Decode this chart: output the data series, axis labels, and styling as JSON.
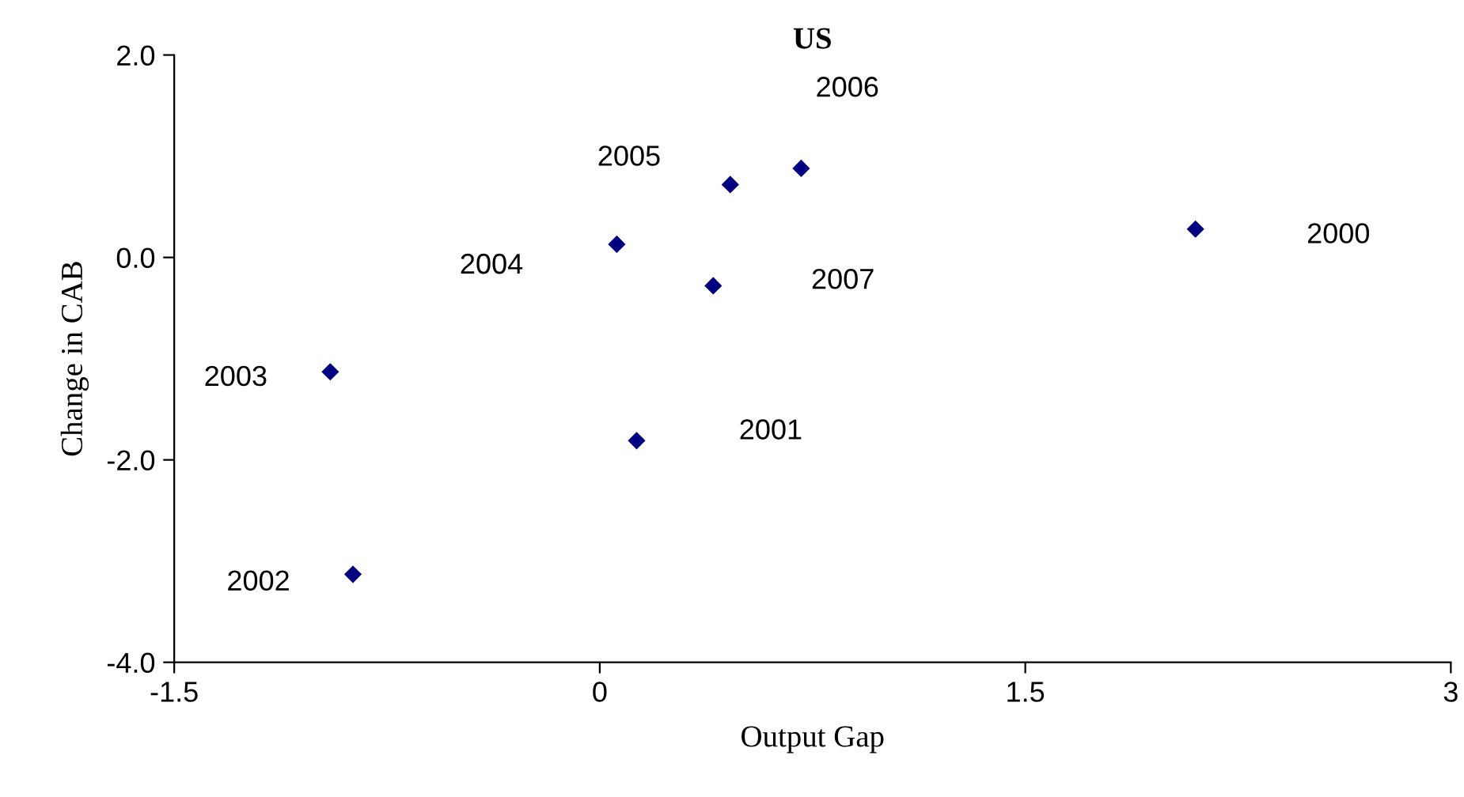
{
  "chart_data": {
    "type": "scatter",
    "title": "US",
    "xlabel": "Output Gap",
    "ylabel": "Change in CAB",
    "x": [
      2.1,
      0.13,
      -0.87,
      -0.95,
      0.06,
      0.46,
      0.71,
      0.4
    ],
    "series": [
      {
        "color": "#000080",
        "values": [
          0.28,
          -1.81,
          -3.13,
          -1.13,
          0.13,
          0.72,
          0.88,
          -0.28
        ]
      }
    ],
    "annotations": [
      "2000",
      "2001",
      "2002",
      "2003",
      "2004",
      "2005",
      "2006",
      "2007"
    ],
    "xlim": [
      -1.5,
      3
    ],
    "xticks": [
      -1.5,
      {
        "value": 0,
        "label": "0"
      },
      1.5,
      {
        "value": 3,
        "label": "3"
      }
    ],
    "ylim": [
      -4,
      2
    ],
    "yticks": [
      {
        "value": -4,
        "label": "-4.0"
      },
      {
        "value": -2,
        "label": "-2.0"
      },
      {
        "value": 0,
        "label": "0.0"
      },
      {
        "value": 2,
        "label": "2.0"
      }
    ],
    "grid": false,
    "marker": "diamond"
  }
}
